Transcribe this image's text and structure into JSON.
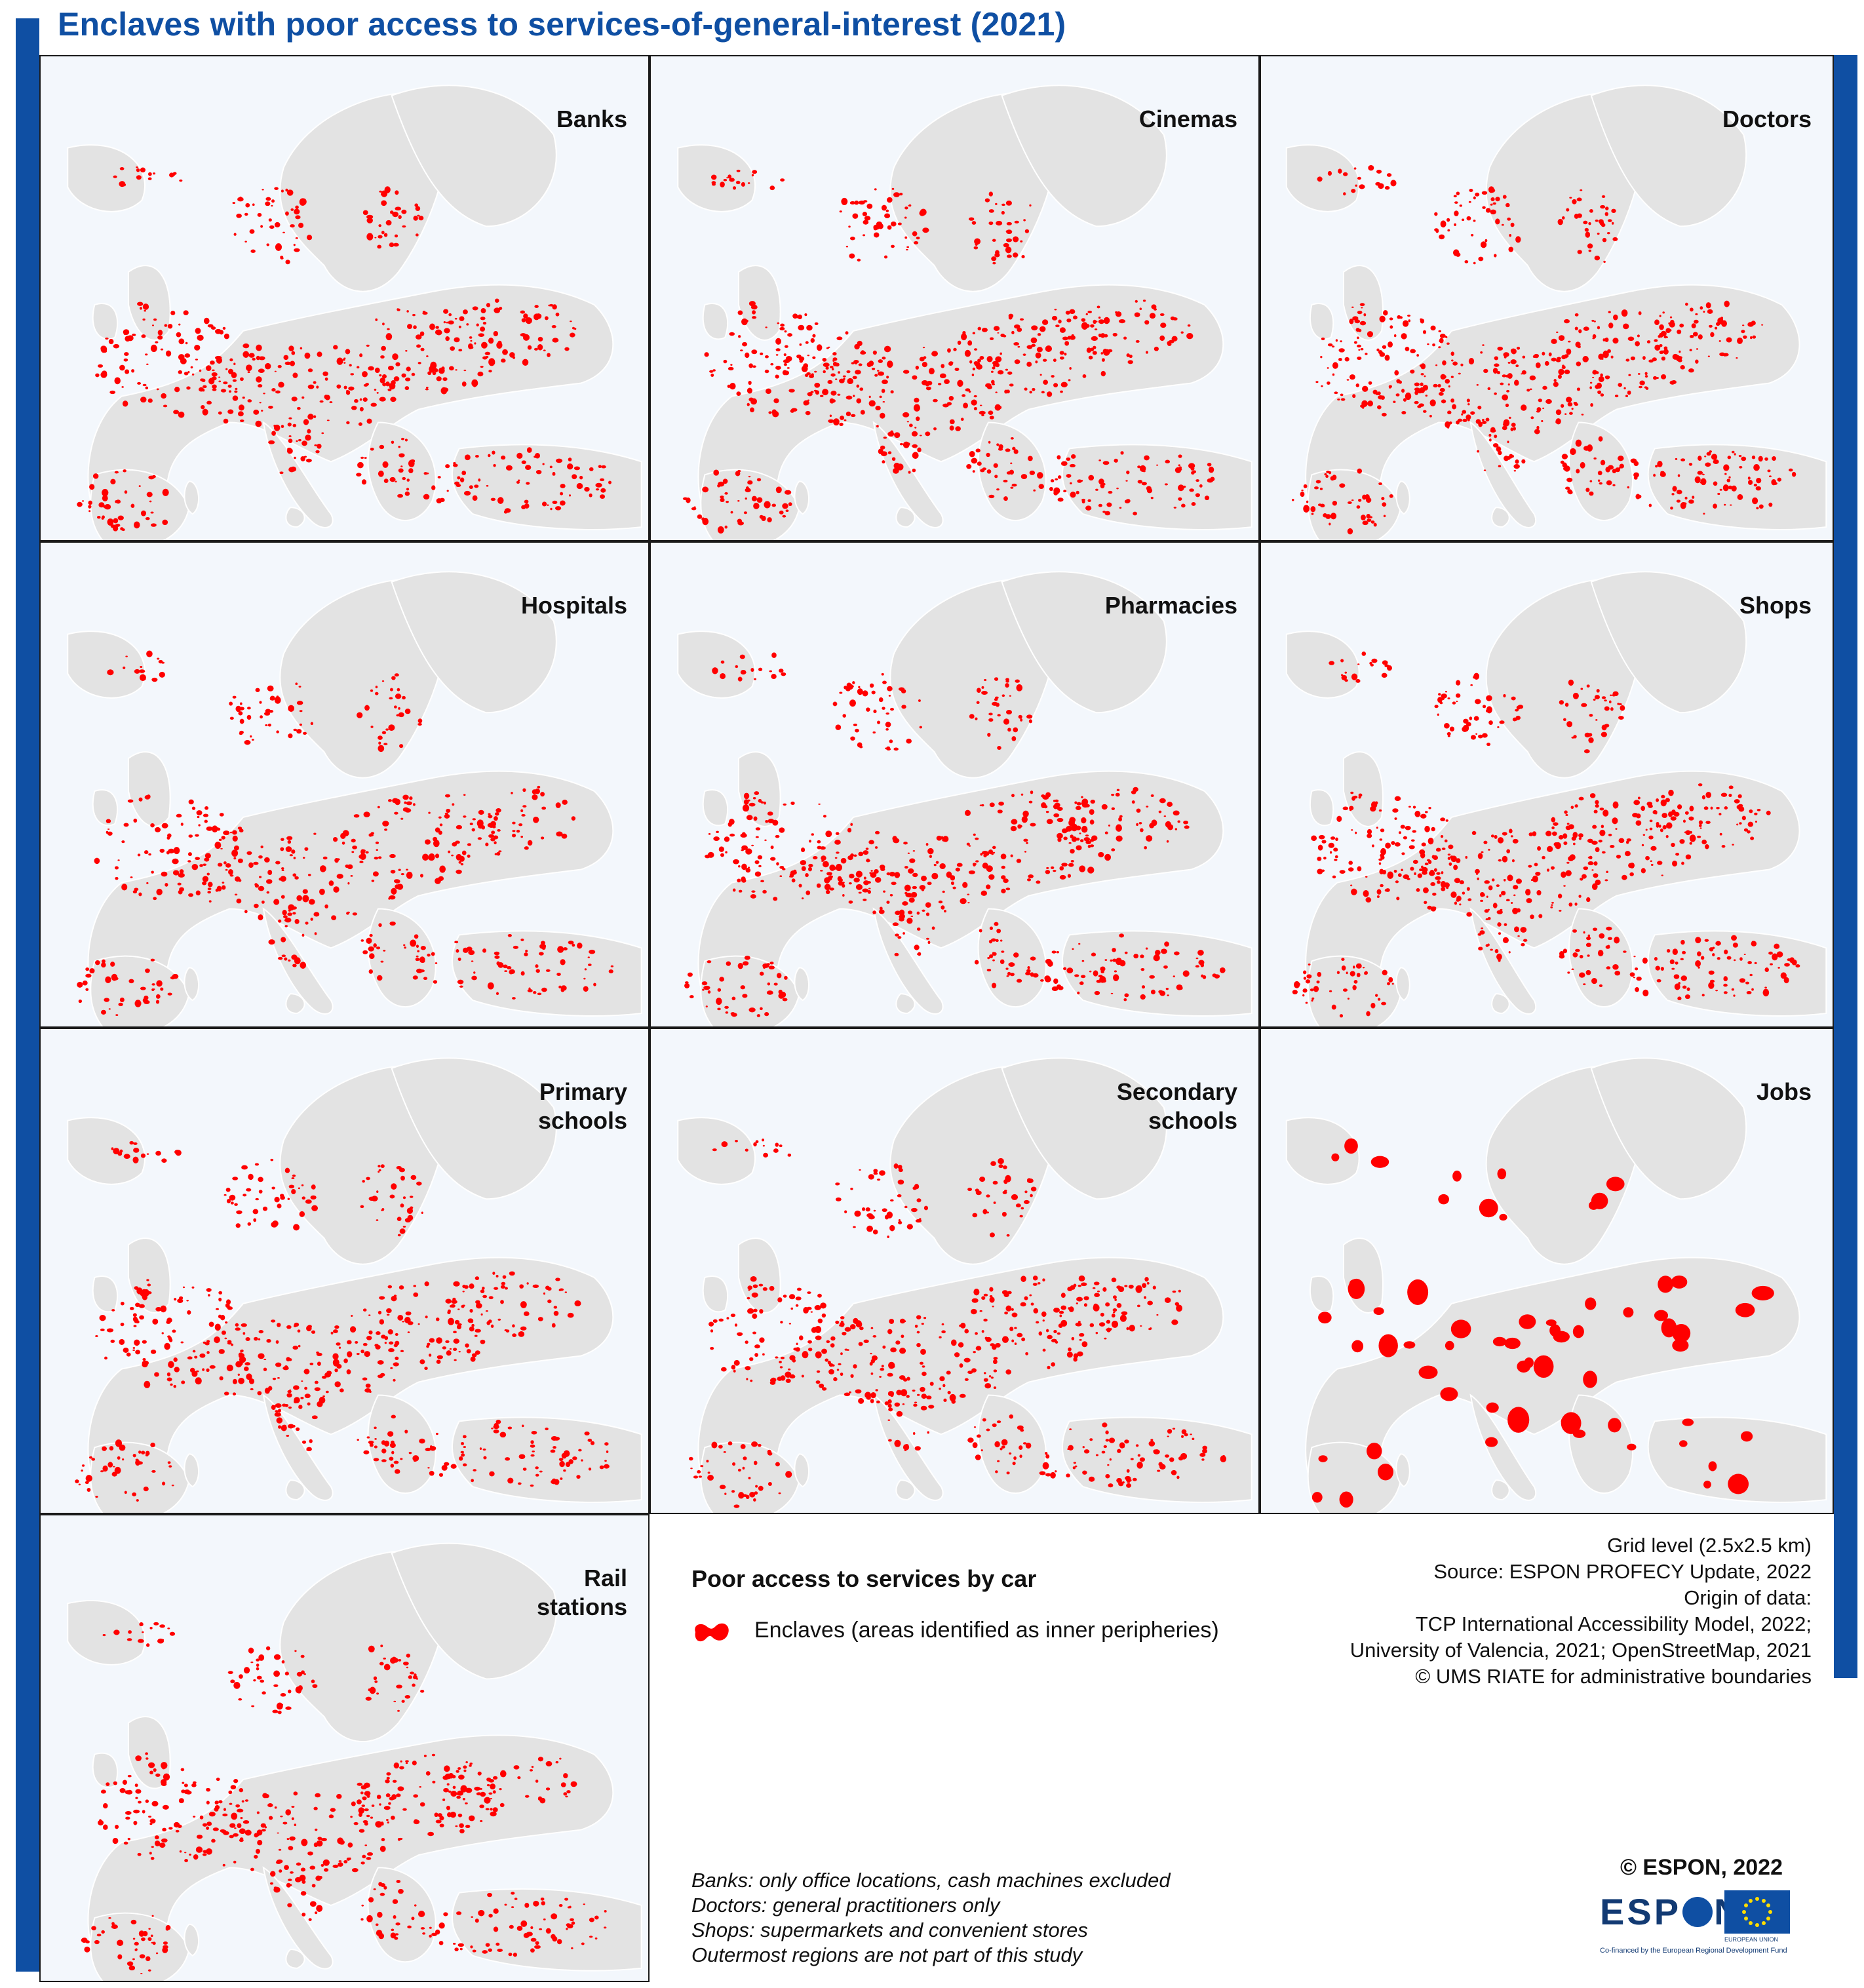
{
  "title": "Enclaves with poor access to services-of-general-interest (2021)",
  "colors": {
    "accent": "#0f4fa3",
    "enclave": "#ff0000",
    "land": "#e3e3e3",
    "sea": "#f3f7fc"
  },
  "panels": [
    {
      "label": "Banks",
      "density": 1.0
    },
    {
      "label": "Cinemas",
      "density": 1.1
    },
    {
      "label": "Doctors",
      "density": 1.1
    },
    {
      "label": "Hospitals",
      "density": 0.9
    },
    {
      "label": "Pharmacies",
      "density": 1.05
    },
    {
      "label": "Shops",
      "density": 1.1
    },
    {
      "label": "Primary\nschools",
      "density": 1.0
    },
    {
      "label": "Secondary\nschools",
      "density": 1.0
    },
    {
      "label": "Jobs",
      "density": 0.45
    },
    {
      "label": "Rail\nstations",
      "density": 0.95
    }
  ],
  "legend": {
    "title": "Poor access to services by car",
    "item": "Enclaves (areas identified as inner peripheries)"
  },
  "source_lines": [
    "Grid level (2.5x2.5 km)",
    "Source: ESPON PROFECY Update, 2022",
    "Origin of data:",
    "TCP International Accessibility Model, 2022;",
    "University of Valencia, 2021; OpenStreetMap, 2021",
    "© UMS RIATE for administrative boundaries"
  ],
  "notes": [
    "Banks: only office locations, cash machines excluded",
    "Doctors: general practitioners only",
    "Shops: supermarkets and convenient stores",
    "Outermost regions are not part of this study"
  ],
  "copyright": "© ESPON, 2022",
  "logo": {
    "espon_before": "ESP",
    "espon_after": "N",
    "eu_caption": "EUROPEAN UNION",
    "cofinanced": "Co-financed by the European Regional Development Fund"
  }
}
